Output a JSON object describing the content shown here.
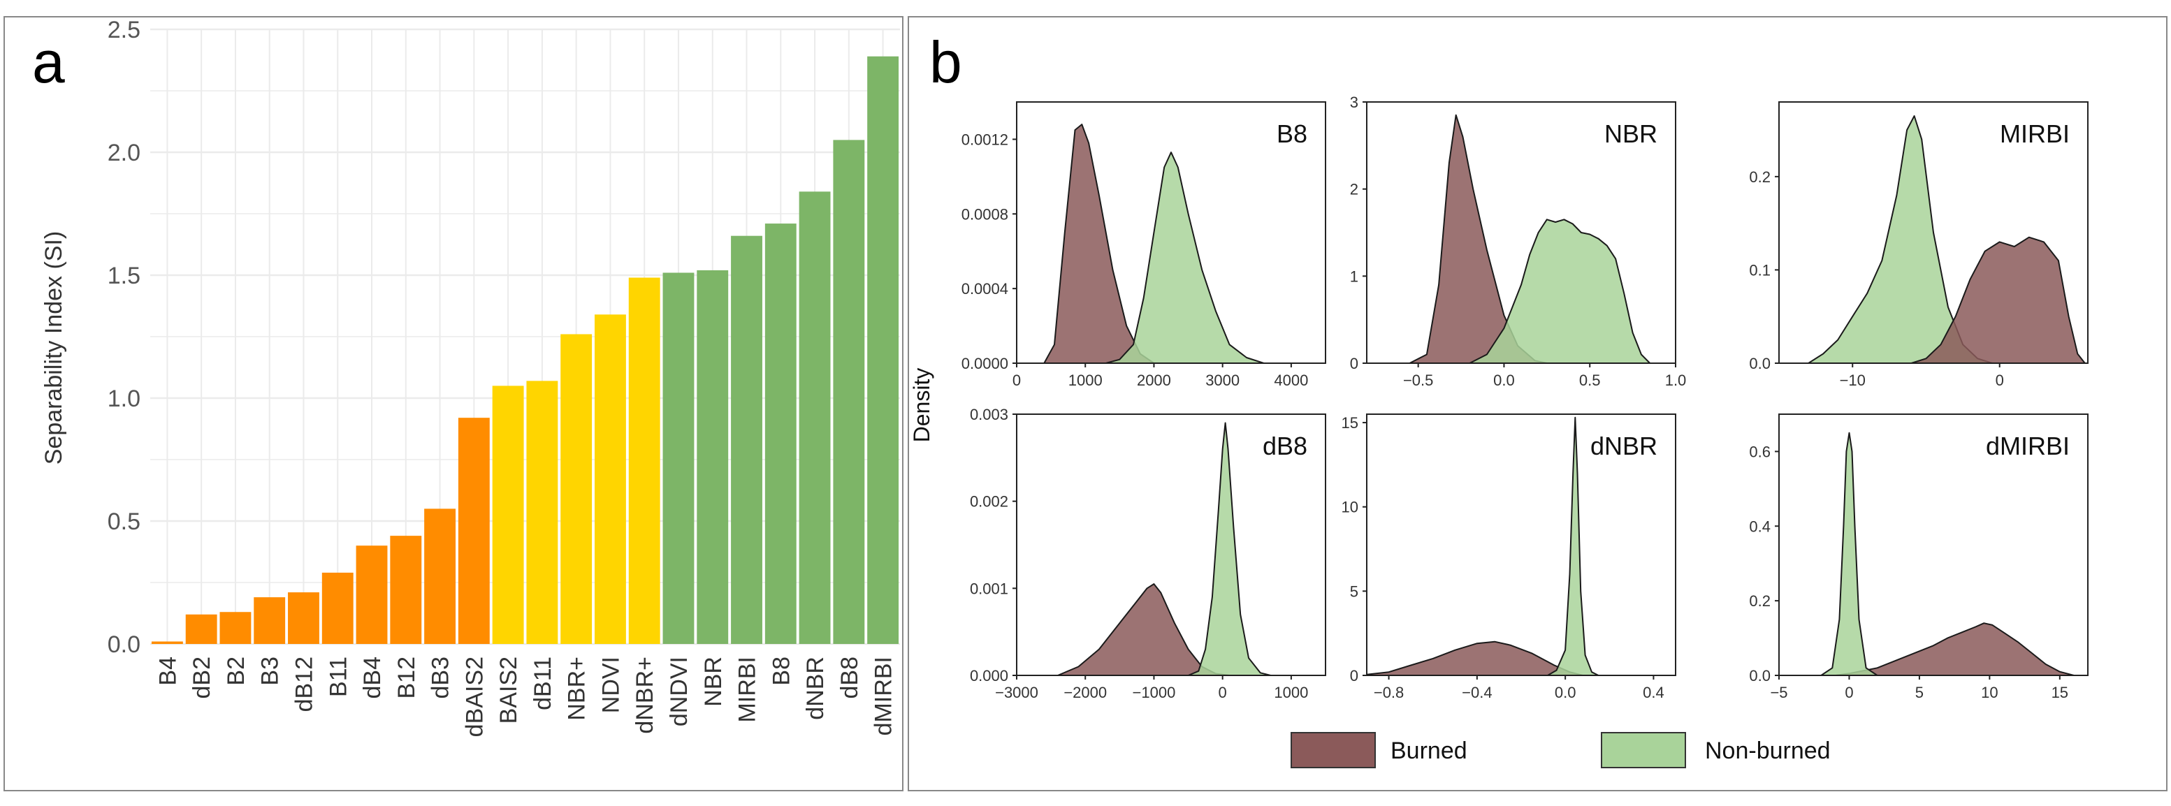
{
  "panel_a": {
    "letter": "a"
  },
  "panel_b": {
    "letter": "b",
    "ylabel": "Density"
  },
  "legend": {
    "burned": "Burned",
    "nonburned": "Non-burned"
  },
  "colors": {
    "orange": "#FF8C00",
    "yellow": "#FFD500",
    "green": "#7DB567",
    "burned_fill": "#8B5A5A",
    "nonburned_fill": "#A9D39A",
    "grid": "#EBEBEB",
    "border": "#888888"
  },
  "chart_data": [
    {
      "type": "bar",
      "title": "",
      "xlabel": "",
      "ylabel": "Separability Index (SI)",
      "ylim": [
        0,
        2.5
      ],
      "yticks": [
        "0.0",
        "0.5",
        "1.0",
        "1.5",
        "2.0",
        "2.5"
      ],
      "categories": [
        "B4",
        "dB2",
        "B2",
        "B3",
        "dB12",
        "B11",
        "dB4",
        "B12",
        "dB3",
        "dBAIS2",
        "BAIS2",
        "dB11",
        "NBR+",
        "NDVI",
        "dNBR+",
        "dNDVI",
        "NBR",
        "MIRBI",
        "B8",
        "dNBR",
        "dB8",
        "dMIRBI"
      ],
      "values": [
        0.01,
        0.12,
        0.13,
        0.19,
        0.21,
        0.29,
        0.4,
        0.44,
        0.55,
        0.92,
        1.05,
        1.07,
        1.26,
        1.34,
        1.49,
        1.51,
        1.52,
        1.66,
        1.71,
        1.84,
        2.05,
        2.39
      ],
      "groups": [
        "orange",
        "orange",
        "orange",
        "orange",
        "orange",
        "orange",
        "orange",
        "orange",
        "orange",
        "orange",
        "yellow",
        "yellow",
        "yellow",
        "yellow",
        "yellow",
        "green",
        "green",
        "green",
        "green",
        "green",
        "green",
        "green"
      ]
    },
    {
      "type": "area",
      "title": "B8",
      "xlim": [
        0,
        4500
      ],
      "ylim": [
        0,
        0.0014
      ],
      "xticks": [
        {
          "v": 0,
          "label": "0"
        },
        {
          "v": 1000,
          "label": "1000"
        },
        {
          "v": 2000,
          "label": "2000"
        },
        {
          "v": 3000,
          "label": "3000"
        },
        {
          "v": 4000,
          "label": "4000"
        }
      ],
      "yticks": [
        {
          "v": 0,
          "label": "0.0000"
        },
        {
          "v": 0.0004,
          "label": "0.0004"
        },
        {
          "v": 0.0008,
          "label": "0.0008"
        },
        {
          "v": 0.0012,
          "label": "0.0012"
        }
      ],
      "series": [
        {
          "name": "Burned",
          "points": [
            [
              400,
              0
            ],
            [
              550,
              0.0001
            ],
            [
              700,
              0.0007
            ],
            [
              850,
              0.00125
            ],
            [
              950,
              0.00128
            ],
            [
              1050,
              0.00118
            ],
            [
              1200,
              0.0009
            ],
            [
              1400,
              0.0005
            ],
            [
              1600,
              0.0002
            ],
            [
              1800,
              5e-05
            ],
            [
              2000,
              0
            ]
          ]
        },
        {
          "name": "Non-burned",
          "points": [
            [
              1300,
              0
            ],
            [
              1500,
              2e-05
            ],
            [
              1700,
              0.0001
            ],
            [
              1850,
              0.00035
            ],
            [
              2000,
              0.0007
            ],
            [
              2150,
              0.00105
            ],
            [
              2250,
              0.00113
            ],
            [
              2350,
              0.00105
            ],
            [
              2500,
              0.0008
            ],
            [
              2700,
              0.0005
            ],
            [
              2900,
              0.00028
            ],
            [
              3100,
              0.0001
            ],
            [
              3350,
              3e-05
            ],
            [
              3600,
              0
            ]
          ]
        }
      ]
    },
    {
      "type": "area",
      "title": "NBR",
      "xlim": [
        -0.8,
        1.0
      ],
      "ylim": [
        0,
        3.0
      ],
      "xticks": [
        {
          "v": -0.5,
          "label": "−0.5"
        },
        {
          "v": 0,
          "label": "0.0"
        },
        {
          "v": 0.5,
          "label": "0.5"
        },
        {
          "v": 1.0,
          "label": "1.0"
        }
      ],
      "yticks": [
        {
          "v": 0,
          "label": "0"
        },
        {
          "v": 1,
          "label": "1"
        },
        {
          "v": 2,
          "label": "2"
        },
        {
          "v": 3,
          "label": "3"
        }
      ],
      "series": [
        {
          "name": "Burned",
          "points": [
            [
              -0.55,
              0
            ],
            [
              -0.45,
              0.1
            ],
            [
              -0.38,
              0.9
            ],
            [
              -0.32,
              2.3
            ],
            [
              -0.28,
              2.85
            ],
            [
              -0.24,
              2.6
            ],
            [
              -0.18,
              2.0
            ],
            [
              -0.1,
              1.3
            ],
            [
              0.0,
              0.55
            ],
            [
              0.08,
              0.2
            ],
            [
              0.18,
              0.03
            ],
            [
              0.25,
              0
            ]
          ]
        },
        {
          "name": "Non-burned",
          "points": [
            [
              -0.2,
              0
            ],
            [
              -0.1,
              0.1
            ],
            [
              0.0,
              0.4
            ],
            [
              0.05,
              0.65
            ],
            [
              0.1,
              0.9
            ],
            [
              0.15,
              1.25
            ],
            [
              0.2,
              1.5
            ],
            [
              0.25,
              1.65
            ],
            [
              0.3,
              1.62
            ],
            [
              0.35,
              1.65
            ],
            [
              0.4,
              1.6
            ],
            [
              0.45,
              1.5
            ],
            [
              0.5,
              1.48
            ],
            [
              0.55,
              1.43
            ],
            [
              0.6,
              1.35
            ],
            [
              0.65,
              1.2
            ],
            [
              0.7,
              0.8
            ],
            [
              0.75,
              0.35
            ],
            [
              0.8,
              0.1
            ],
            [
              0.85,
              0
            ]
          ]
        }
      ]
    },
    {
      "type": "area",
      "title": "MIRBI",
      "xlim": [
        -15,
        6
      ],
      "ylim": [
        0,
        0.28
      ],
      "xticks": [
        {
          "v": -10,
          "label": "−10"
        },
        {
          "v": 0,
          "label": "0"
        }
      ],
      "yticks": [
        {
          "v": 0,
          "label": "0.0"
        },
        {
          "v": 0.1,
          "label": "0.1"
        },
        {
          "v": 0.2,
          "label": "0.2"
        }
      ],
      "series": [
        {
          "name": "Non-burned",
          "points": [
            [
              -13,
              0
            ],
            [
              -12,
              0.01
            ],
            [
              -11,
              0.025
            ],
            [
              -10,
              0.05
            ],
            [
              -9,
              0.075
            ],
            [
              -8,
              0.11
            ],
            [
              -7,
              0.18
            ],
            [
              -6.3,
              0.25
            ],
            [
              -5.8,
              0.265
            ],
            [
              -5.3,
              0.24
            ],
            [
              -4.5,
              0.14
            ],
            [
              -3.5,
              0.06
            ],
            [
              -2.5,
              0.02
            ],
            [
              -1.5,
              0.005
            ],
            [
              -0.5,
              0
            ]
          ]
        },
        {
          "name": "Burned",
          "points": [
            [
              -6,
              0
            ],
            [
              -5,
              0.005
            ],
            [
              -4,
              0.02
            ],
            [
              -3,
              0.05
            ],
            [
              -2,
              0.09
            ],
            [
              -1,
              0.12
            ],
            [
              0,
              0.13
            ],
            [
              1,
              0.125
            ],
            [
              2,
              0.135
            ],
            [
              3,
              0.13
            ],
            [
              4,
              0.11
            ],
            [
              4.7,
              0.05
            ],
            [
              5.3,
              0.01
            ],
            [
              5.8,
              0
            ]
          ]
        }
      ]
    },
    {
      "type": "area",
      "title": "dB8",
      "xlim": [
        -3000,
        1500
      ],
      "ylim": [
        0,
        0.003
      ],
      "xticks": [
        {
          "v": -3000,
          "label": "−3000"
        },
        {
          "v": -2000,
          "label": "−2000"
        },
        {
          "v": -1000,
          "label": "−1000"
        },
        {
          "v": 0,
          "label": "0"
        },
        {
          "v": 1000,
          "label": "1000"
        }
      ],
      "yticks": [
        {
          "v": 0,
          "label": "0.000"
        },
        {
          "v": 0.001,
          "label": "0.001"
        },
        {
          "v": 0.002,
          "label": "0.002"
        },
        {
          "v": 0.003,
          "label": "0.003"
        }
      ],
      "series": [
        {
          "name": "Burned",
          "points": [
            [
              -2400,
              0
            ],
            [
              -2100,
              0.0001
            ],
            [
              -1800,
              0.0003
            ],
            [
              -1500,
              0.0006
            ],
            [
              -1250,
              0.00085
            ],
            [
              -1100,
              0.001
            ],
            [
              -1000,
              0.00105
            ],
            [
              -900,
              0.00095
            ],
            [
              -700,
              0.0006
            ],
            [
              -500,
              0.0003
            ],
            [
              -300,
              0.0001
            ],
            [
              -100,
              2e-05
            ],
            [
              100,
              0
            ]
          ]
        },
        {
          "name": "Non-burned",
          "points": [
            [
              -500,
              0
            ],
            [
              -350,
              5e-05
            ],
            [
              -250,
              0.0003
            ],
            [
              -150,
              0.0009
            ],
            [
              -60,
              0.0019
            ],
            [
              0,
              0.0026
            ],
            [
              40,
              0.0029
            ],
            [
              80,
              0.0026
            ],
            [
              160,
              0.0017
            ],
            [
              260,
              0.0007
            ],
            [
              380,
              0.0002
            ],
            [
              550,
              3e-05
            ],
            [
              700,
              0
            ]
          ]
        }
      ]
    },
    {
      "type": "area",
      "title": "dNBR",
      "xlim": [
        -0.9,
        0.5
      ],
      "ylim": [
        0,
        15.5
      ],
      "xticks": [
        {
          "v": -0.8,
          "label": "−0.8"
        },
        {
          "v": -0.4,
          "label": "−0.4"
        },
        {
          "v": 0,
          "label": "0.0"
        },
        {
          "v": 0.4,
          "label": "0.4"
        }
      ],
      "yticks": [
        {
          "v": 0,
          "label": "0"
        },
        {
          "v": 5,
          "label": "5"
        },
        {
          "v": 10,
          "label": "10"
        },
        {
          "v": 15,
          "label": "15"
        }
      ],
      "series": [
        {
          "name": "Burned",
          "points": [
            [
              -0.9,
              0.05
            ],
            [
              -0.8,
              0.2
            ],
            [
              -0.7,
              0.6
            ],
            [
              -0.6,
              1.0
            ],
            [
              -0.5,
              1.5
            ],
            [
              -0.4,
              1.9
            ],
            [
              -0.32,
              2.0
            ],
            [
              -0.25,
              1.8
            ],
            [
              -0.15,
              1.3
            ],
            [
              -0.05,
              0.6
            ],
            [
              0.02,
              0.2
            ],
            [
              0.08,
              0
            ]
          ]
        },
        {
          "name": "Non-burned",
          "points": [
            [
              -0.08,
              0
            ],
            [
              -0.04,
              0.3
            ],
            [
              0.0,
              1.5
            ],
            [
              0.02,
              6
            ],
            [
              0.035,
              12
            ],
            [
              0.045,
              15.3
            ],
            [
              0.055,
              12
            ],
            [
              0.07,
              5
            ],
            [
              0.09,
              1.2
            ],
            [
              0.12,
              0.2
            ],
            [
              0.15,
              0
            ]
          ]
        }
      ]
    },
    {
      "type": "area",
      "title": "dMIRBI",
      "xlim": [
        -5,
        17
      ],
      "ylim": [
        0,
        0.7
      ],
      "xticks": [
        {
          "v": -5,
          "label": "−5"
        },
        {
          "v": 0,
          "label": "0"
        },
        {
          "v": 5,
          "label": "5"
        },
        {
          "v": 10,
          "label": "10"
        },
        {
          "v": 15,
          "label": "15"
        }
      ],
      "yticks": [
        {
          "v": 0,
          "label": "0.0"
        },
        {
          "v": 0.2,
          "label": "0.2"
        },
        {
          "v": 0.4,
          "label": "0.4"
        },
        {
          "v": 0.6,
          "label": "0.6"
        }
      ],
      "series": [
        {
          "name": "Burned",
          "points": [
            [
              -1,
              0
            ],
            [
              0,
              0.005
            ],
            [
              2,
              0.02
            ],
            [
              4,
              0.05
            ],
            [
              6,
              0.08
            ],
            [
              7,
              0.1
            ],
            [
              8,
              0.115
            ],
            [
              9,
              0.13
            ],
            [
              9.6,
              0.14
            ],
            [
              10.2,
              0.135
            ],
            [
              11,
              0.115
            ],
            [
              12,
              0.09
            ],
            [
              13,
              0.06
            ],
            [
              14,
              0.03
            ],
            [
              15,
              0.01
            ],
            [
              16,
              0
            ]
          ]
        },
        {
          "name": "Non-burned",
          "points": [
            [
              -2,
              0
            ],
            [
              -1.2,
              0.02
            ],
            [
              -0.7,
              0.15
            ],
            [
              -0.4,
              0.4
            ],
            [
              -0.2,
              0.6
            ],
            [
              0,
              0.65
            ],
            [
              0.2,
              0.6
            ],
            [
              0.4,
              0.4
            ],
            [
              0.7,
              0.15
            ],
            [
              1.2,
              0.02
            ],
            [
              2,
              0
            ]
          ]
        }
      ]
    }
  ]
}
